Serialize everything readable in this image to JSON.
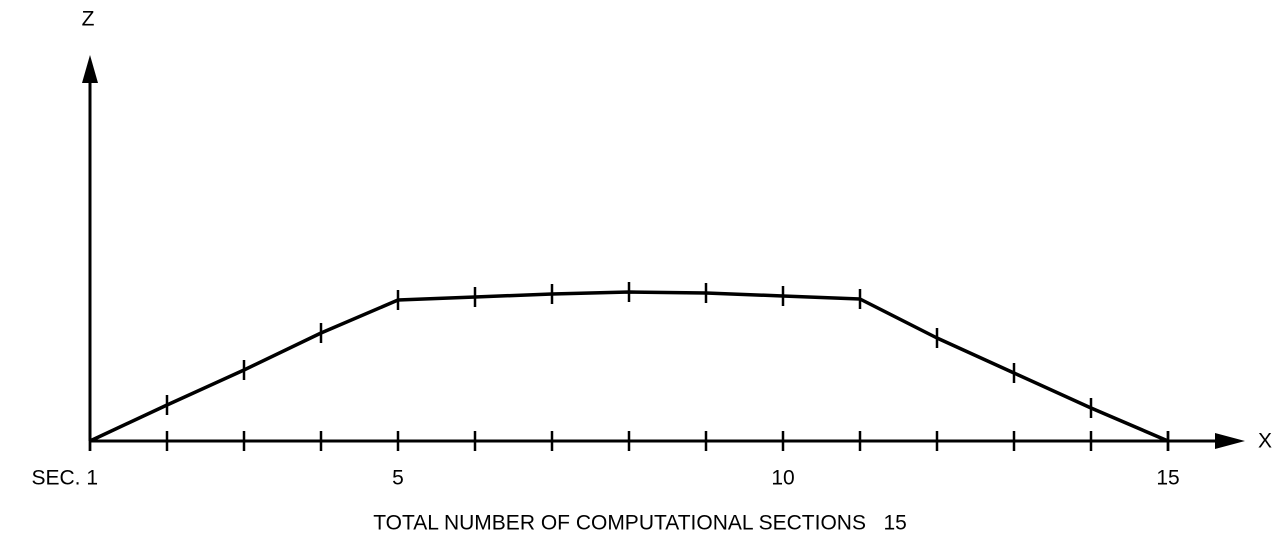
{
  "chart_data": {
    "type": "line",
    "y_axis_name": "Z",
    "x_axis_name": "X",
    "xlabel": "TOTAL NUMBER OF COMPUTATIONAL SECTIONS   15",
    "x": [
      1,
      2,
      3,
      4,
      5,
      6,
      7,
      8,
      9,
      10,
      11,
      12,
      13,
      14,
      15
    ],
    "series": [
      {
        "color": "#000000",
        "values": [
          0,
          36,
          71,
          108,
          141,
          144,
          147,
          149,
          148,
          145,
          142,
          103,
          68,
          33,
          0
        ]
      }
    ],
    "xlim": [
      1,
      16
    ],
    "ylim": [
      0,
      386
    ],
    "xticks": [
      1,
      2,
      3,
      4,
      5,
      6,
      7,
      8,
      9,
      10,
      11,
      12,
      13,
      14,
      15
    ],
    "xtick_labels": [
      {
        "value": 1,
        "label": "SEC. 1"
      },
      5,
      10,
      15
    ]
  }
}
